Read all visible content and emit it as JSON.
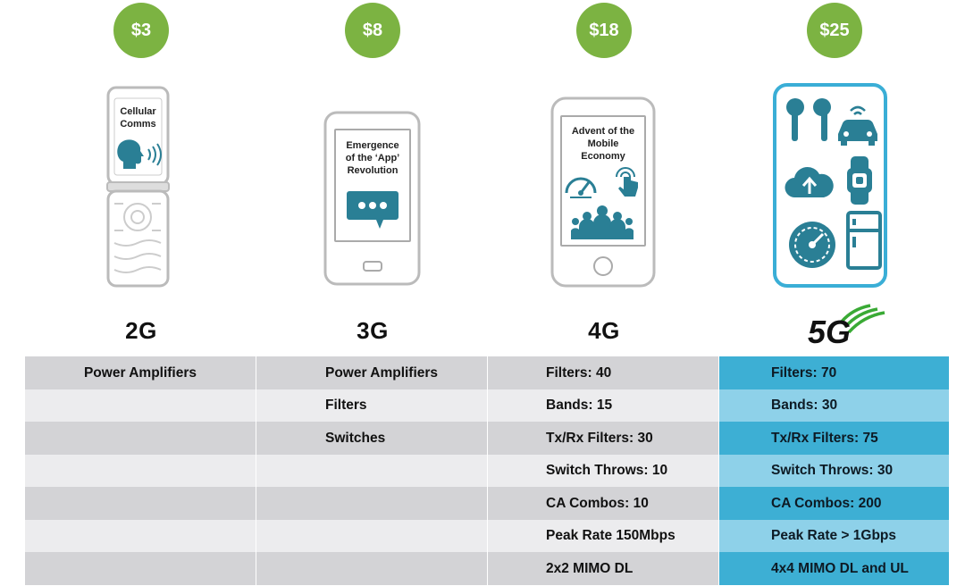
{
  "columns": [
    {
      "price": "$3",
      "generation": "2G",
      "screen_text": "Cellular\nComms"
    },
    {
      "price": "$8",
      "generation": "3G",
      "screen_text": "Emergence\nof the ‘App’\nRevolution"
    },
    {
      "price": "$18",
      "generation": "4G",
      "screen_text": "Advent of the\nMobile\nEconomy"
    },
    {
      "price": "$25",
      "generation": "5G",
      "screen_text": ""
    }
  ],
  "table": {
    "rows": [
      [
        "Power Amplifiers",
        "Power Amplifiers",
        "Filters: 40",
        "Filters: 70"
      ],
      [
        "",
        "Filters",
        "Bands: 15",
        "Bands: 30"
      ],
      [
        "",
        "Switches",
        "Tx/Rx Filters: 30",
        "Tx/Rx Filters: 75"
      ],
      [
        "",
        "",
        "Switch Throws: 10",
        "Switch Throws: 30"
      ],
      [
        "",
        "",
        "CA Combos: 10",
        "CA Combos: 200"
      ],
      [
        "",
        "",
        "Peak Rate 150Mbps",
        "Peak Rate > 1Gbps"
      ],
      [
        "",
        "",
        "2x2 MIMO DL",
        "4x4 MIMO DL and UL"
      ]
    ]
  },
  "colors": {
    "badge": "#7cb342",
    "row_gray_dark": "#d3d3d6",
    "row_gray_light": "#ececee",
    "row_blue_dark": "#3dafd4",
    "row_blue_light": "#8ed1e9",
    "icon_teal": "#2a7f95",
    "logo_green": "#3aaa35"
  },
  "icons": [
    "speaking-head-icon",
    "chat-bubble-icon",
    "speedometer-icon",
    "touch-icon",
    "people-icon",
    "earbuds-icon",
    "connected-car-icon",
    "cloud-upload-icon",
    "smartwatch-icon",
    "gauge-icon",
    "refrigerator-icon",
    "5g-logo"
  ]
}
